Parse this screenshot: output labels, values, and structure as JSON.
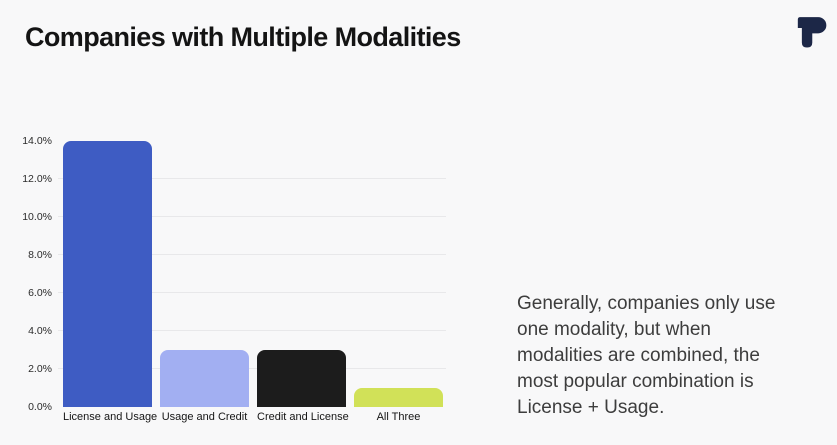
{
  "header": {
    "title": "Companies with Multiple Modalities"
  },
  "logo": {
    "name": "p-brand-logo",
    "color": "#1c2747"
  },
  "chart_data": {
    "type": "bar",
    "categories": [
      "License and Usage",
      "Usage and Credit",
      "Credit and License",
      "All Three"
    ],
    "values": [
      14.0,
      3.0,
      3.0,
      1.0
    ],
    "bar_colors": [
      "#3e5cc3",
      "#a2aff2",
      "#1c1c1c",
      "#d1e158"
    ],
    "title": "",
    "xlabel": "",
    "ylabel": "",
    "ylim": [
      0,
      14
    ],
    "ytick_step": 2,
    "ytick_suffix": "%",
    "grid": true,
    "gridline_color": "#e8e8ea",
    "legend": "none"
  },
  "caption": {
    "text": "Generally, companies only use one modality, but when modalities are combined, the most popular combination is License + Usage."
  }
}
